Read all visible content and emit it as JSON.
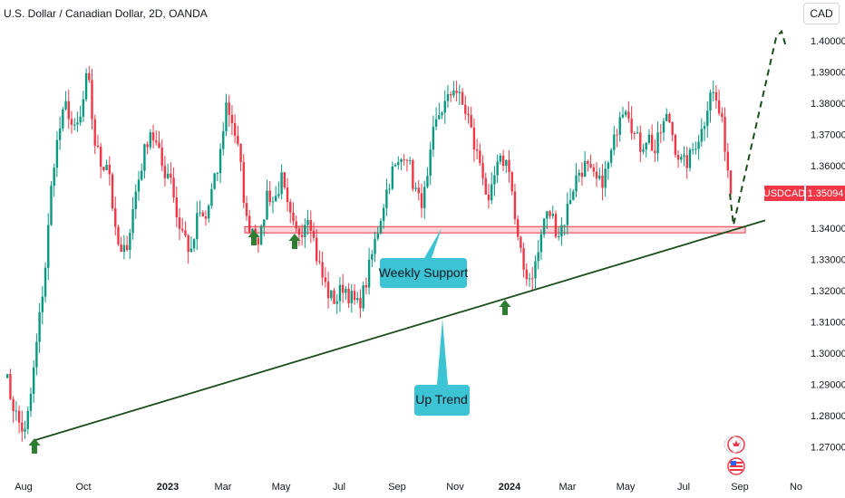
{
  "header": {
    "title": "U.S. Dollar / Canadian Dollar, 2D, OANDA",
    "currency_button": "CAD"
  },
  "price_badge": {
    "symbol": "USDCAD",
    "value": "1.35094"
  },
  "colors": {
    "up": "#089981",
    "down": "#f23645",
    "trendline": "#1b4d1b",
    "support_fill": "#f7c3c7",
    "support_border": "#f23645",
    "callout": "#3cc4d4",
    "arrow": "#2e7d32",
    "projection": "#1b4d1b"
  },
  "annotations": {
    "weekly_support": "Weekly Support",
    "up_trend": "Up Trend"
  },
  "chart_data": {
    "type": "candlestick",
    "title": "U.S. Dollar / Canadian Dollar, 2D, OANDA",
    "xlabel": "",
    "ylabel": "",
    "ylim": [
      1.262,
      1.412
    ],
    "yticks": [
      "1.40000",
      "1.39000",
      "1.38000",
      "1.37000",
      "1.36000",
      "1.35000",
      "1.34000",
      "1.33000",
      "1.32000",
      "1.31000",
      "1.30000",
      "1.29000",
      "1.28000",
      "1.27000"
    ],
    "xticks": [
      {
        "label": "Aug",
        "bold": false
      },
      {
        "label": "Oct",
        "bold": false
      },
      {
        "label": "2023",
        "bold": true
      },
      {
        "label": "Mar",
        "bold": false
      },
      {
        "label": "May",
        "bold": false
      },
      {
        "label": "Jul",
        "bold": false
      },
      {
        "label": "Sep",
        "bold": false
      },
      {
        "label": "Nov",
        "bold": false
      },
      {
        "label": "2024",
        "bold": true
      },
      {
        "label": "Mar",
        "bold": false
      },
      {
        "label": "May",
        "bold": false
      },
      {
        "label": "Jul",
        "bold": false
      },
      {
        "label": "Sep",
        "bold": false
      },
      {
        "label": "No",
        "bold": false
      }
    ],
    "close_path": [
      1.295,
      1.285,
      1.278,
      1.274,
      1.29,
      1.31,
      1.33,
      1.36,
      1.372,
      1.38,
      1.37,
      1.375,
      1.39,
      1.368,
      1.36,
      1.362,
      1.338,
      1.33,
      1.338,
      1.352,
      1.362,
      1.372,
      1.366,
      1.358,
      1.358,
      1.342,
      1.338,
      1.331,
      1.345,
      1.342,
      1.352,
      1.36,
      1.38,
      1.374,
      1.362,
      1.342,
      1.34,
      1.336,
      1.352,
      1.348,
      1.356,
      1.345,
      1.338,
      1.34,
      1.346,
      1.332,
      1.324,
      1.318,
      1.317,
      1.322,
      1.318,
      1.315,
      1.32,
      1.33,
      1.34,
      1.35,
      1.358,
      1.36,
      1.366,
      1.355,
      1.348,
      1.352,
      1.37,
      1.378,
      1.38,
      1.386,
      1.38,
      1.376,
      1.365,
      1.36,
      1.346,
      1.358,
      1.362,
      1.36,
      1.338,
      1.327,
      1.324,
      1.33,
      1.343,
      1.345,
      1.338,
      1.343,
      1.352,
      1.358,
      1.36,
      1.356,
      1.354,
      1.358,
      1.366,
      1.378,
      1.38,
      1.37,
      1.366,
      1.37,
      1.364,
      1.372,
      1.376,
      1.366,
      1.36,
      1.362,
      1.368,
      1.372,
      1.385,
      1.38,
      1.37,
      1.351
    ],
    "price_label": "1.35094",
    "support_zone": [
      1.3385,
      1.3405
    ],
    "uptrend_line": [
      {
        "x": "Aug 2022",
        "y": 1.272
      },
      {
        "x": "Sep 2024",
        "y": 1.341
      }
    ],
    "projection_peak": 1.401,
    "support_touches": 5
  }
}
